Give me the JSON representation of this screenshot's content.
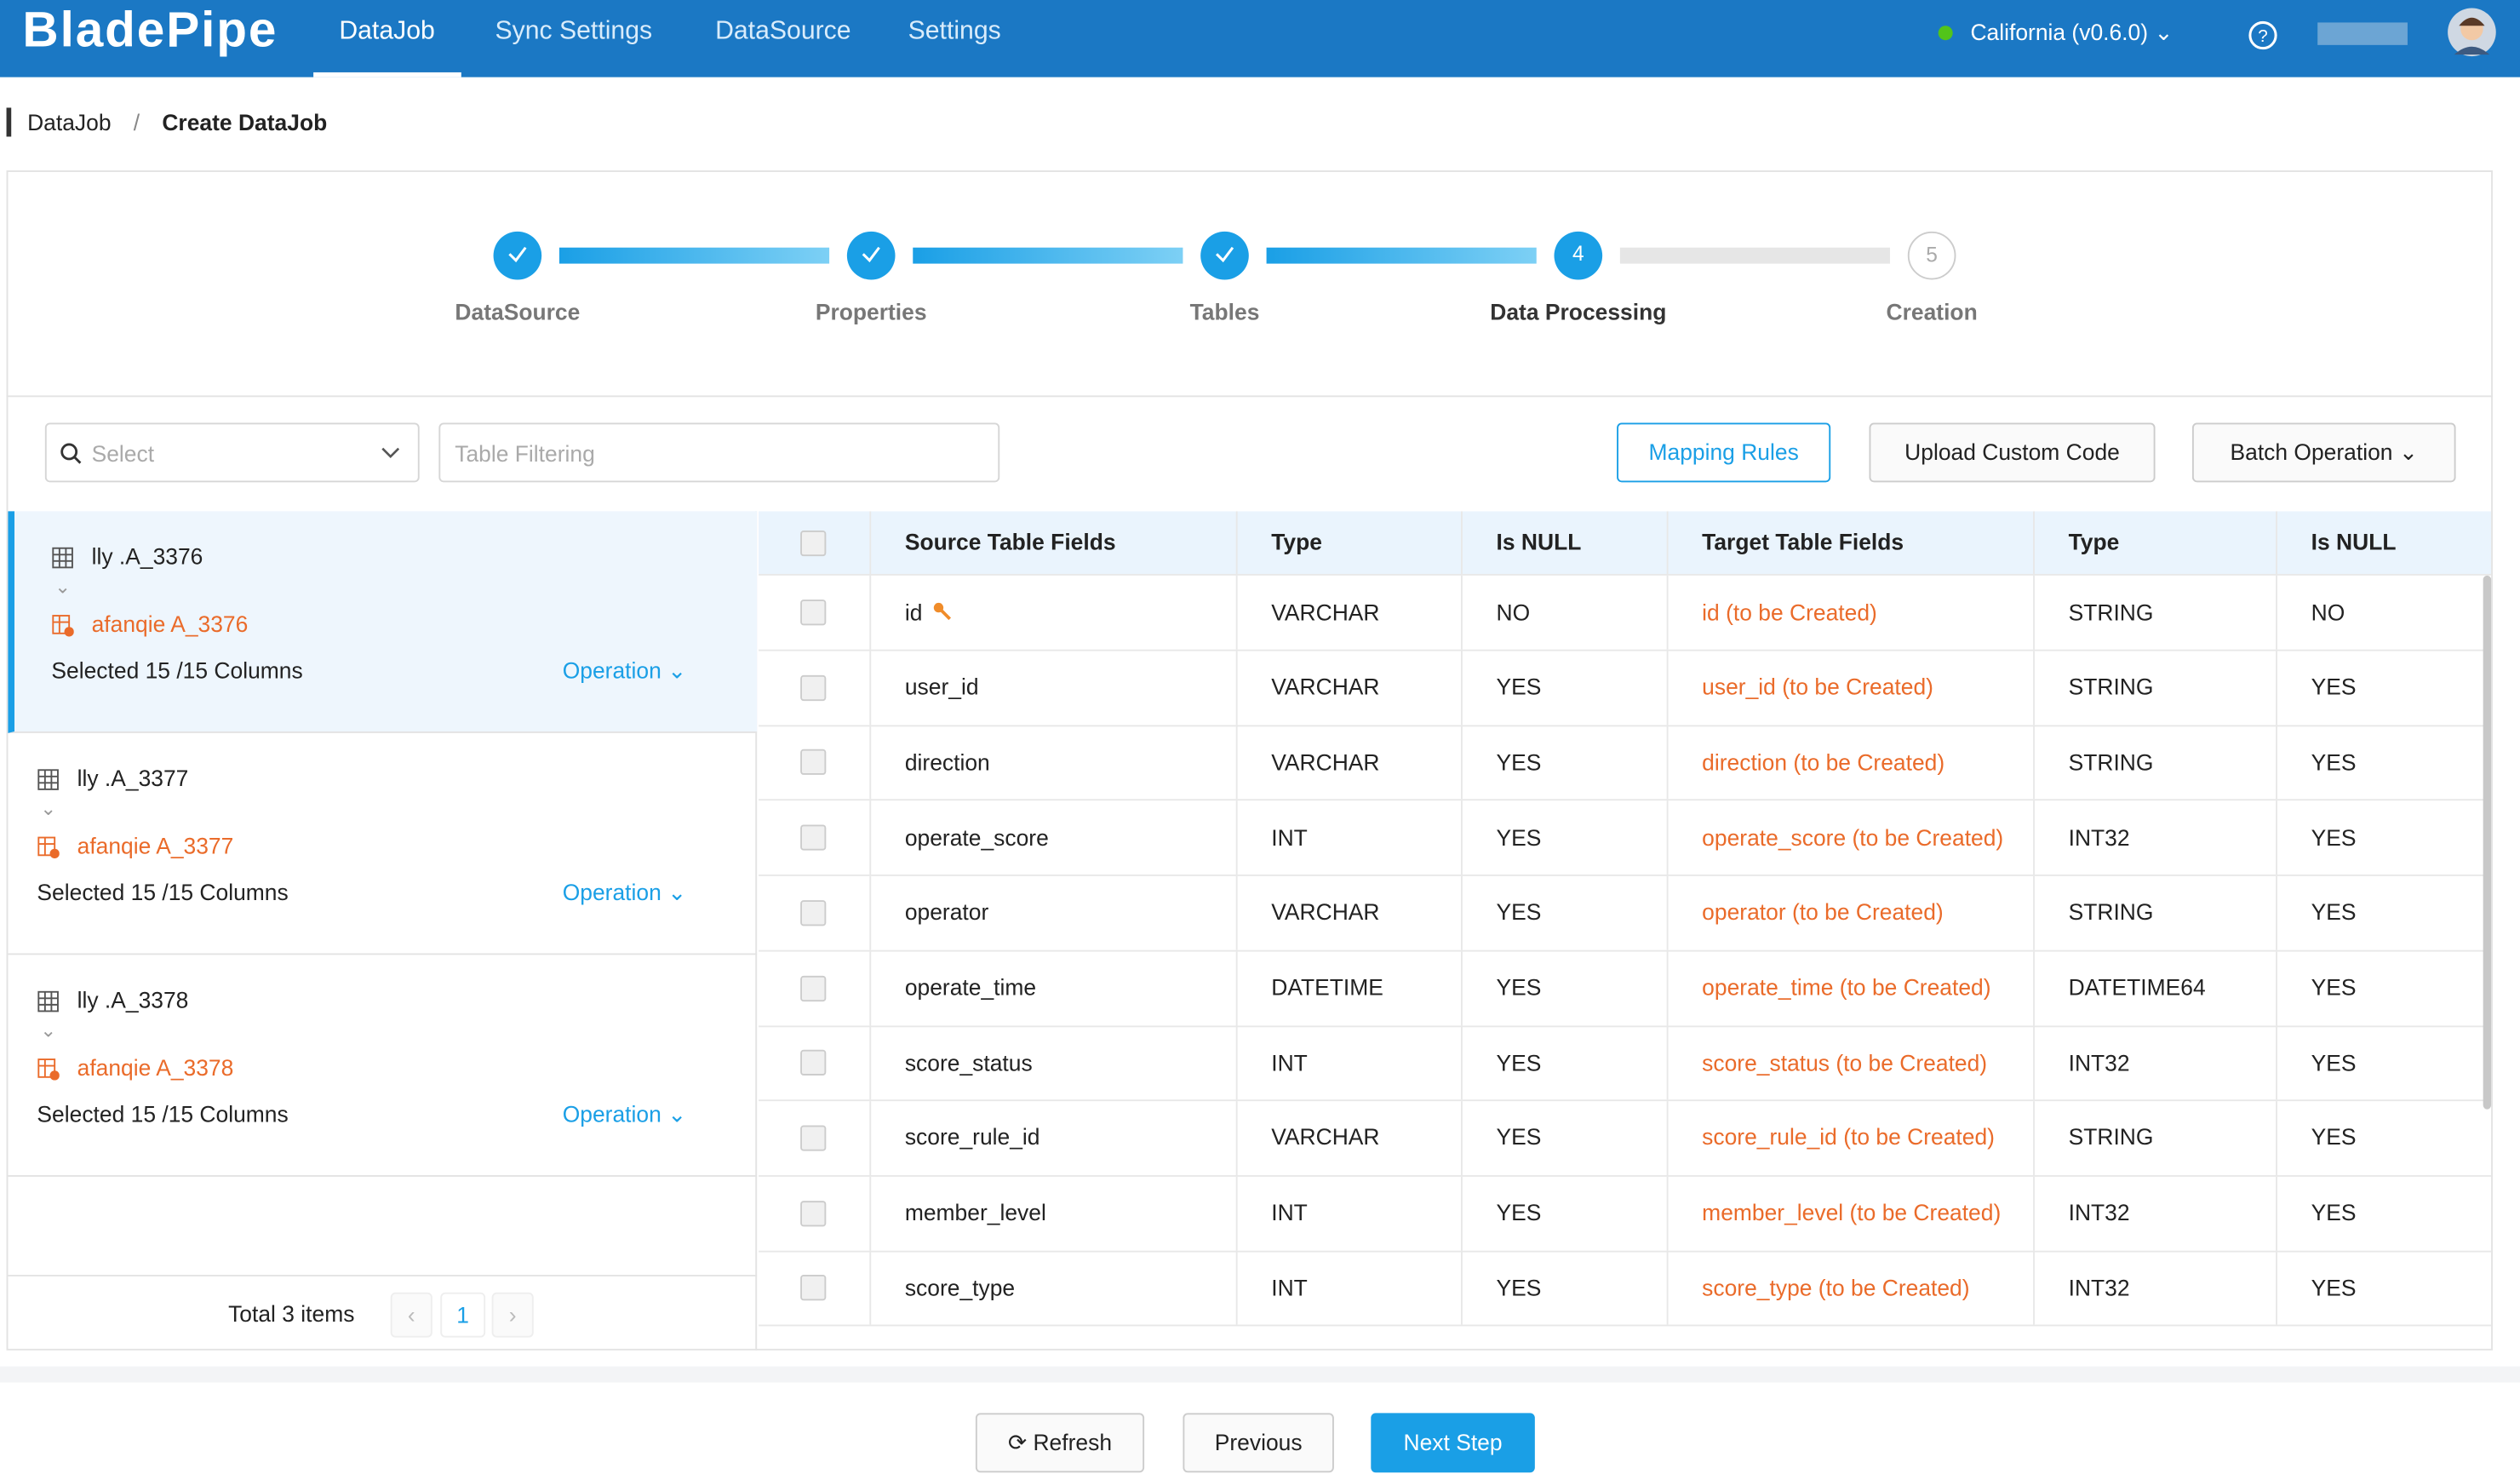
{
  "header": {
    "logo": "BladePipe",
    "nav": [
      "DataJob",
      "Sync Settings",
      "DataSource",
      "Settings"
    ],
    "region": "California (v0.6.0)"
  },
  "breadcrumb": {
    "items": [
      "DataJob",
      "Create DataJob"
    ],
    "separator": "/"
  },
  "steps": [
    {
      "label": "DataSource",
      "status": "done"
    },
    {
      "label": "Properties",
      "status": "done"
    },
    {
      "label": "Tables",
      "status": "done"
    },
    {
      "label": "Data Processing",
      "number": "4",
      "status": "current"
    },
    {
      "label": "Creation",
      "number": "5",
      "status": "pending"
    }
  ],
  "toolbar": {
    "select_placeholder": "Select",
    "filter_placeholder": "Table Filtering",
    "buttons": [
      "Mapping Rules",
      "Upload Custom Code",
      "Batch Operation"
    ]
  },
  "table_list": {
    "items": [
      {
        "source": "lly .A_3376",
        "target": "afanqie A_3376",
        "selected": "Selected 15 /15 Columns",
        "operation": "Operation"
      },
      {
        "source": "lly .A_3377",
        "target": "afanqie A_3377",
        "selected": "Selected 15 /15 Columns",
        "operation": "Operation"
      },
      {
        "source": "lly .A_3378",
        "target": "afanqie A_3378",
        "selected": "Selected 15 /15 Columns",
        "operation": "Operation"
      }
    ],
    "pagination": {
      "total": "Total 3 items",
      "page": "1"
    }
  },
  "grid": {
    "headers": [
      "Source Table Fields",
      "Type",
      "Is NULL",
      "Target Table Fields",
      "Type",
      "Is NULL"
    ],
    "rows": [
      [
        "id",
        "VARCHAR",
        "NO",
        "id (to be Created)",
        "STRING",
        "NO"
      ],
      [
        "user_id",
        "VARCHAR",
        "YES",
        "user_id (to be Created)",
        "STRING",
        "YES"
      ],
      [
        "direction",
        "VARCHAR",
        "YES",
        "direction (to be Created)",
        "STRING",
        "YES"
      ],
      [
        "operate_score",
        "INT",
        "YES",
        "operate_score (to be Created)",
        "INT32",
        "YES"
      ],
      [
        "operator",
        "VARCHAR",
        "YES",
        "operator (to be Created)",
        "STRING",
        "YES"
      ],
      [
        "operate_time",
        "DATETIME",
        "YES",
        "operate_time (to be Created)",
        "DATETIME64",
        "YES"
      ],
      [
        "score_status",
        "INT",
        "YES",
        "score_status (to be Created)",
        "INT32",
        "YES"
      ],
      [
        "score_rule_id",
        "VARCHAR",
        "YES",
        "score_rule_id (to be Created)",
        "STRING",
        "YES"
      ],
      [
        "member_level",
        "INT",
        "YES",
        "member_level (to be Created)",
        "INT32",
        "YES"
      ],
      [
        "score_type",
        "INT",
        "YES",
        "score_type (to be Created)",
        "INT32",
        "YES"
      ]
    ]
  },
  "footer": {
    "buttons": [
      "Refresh",
      "Previous",
      "Next Step"
    ]
  }
}
